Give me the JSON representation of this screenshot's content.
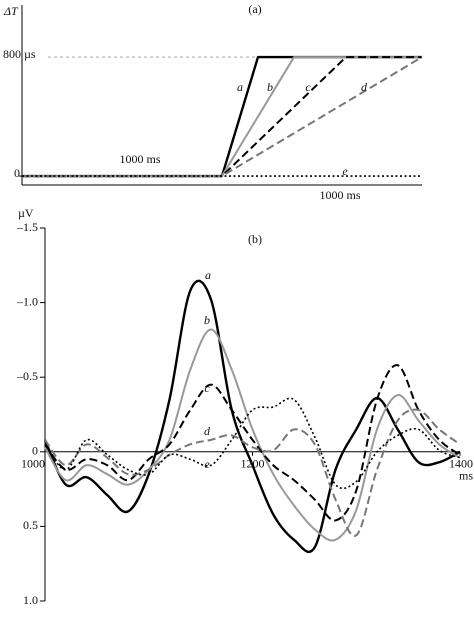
{
  "chart_data": [
    {
      "type": "line",
      "title": "(a)",
      "y_label": "ΔT",
      "annotations": [
        "1000  ms",
        "1000 ms"
      ],
      "xlim": [
        0,
        2000
      ],
      "ylim": [
        -60,
        1150
      ],
      "yticks": [
        0,
        {
          "value": 800,
          "label": "800 µs"
        }
      ],
      "grid": true,
      "series": [
        {
          "name": "a",
          "color": "#000000",
          "style": "solid",
          "x": [
            0,
            1000,
            1180,
            2000
          ],
          "values": [
            0,
            0,
            800,
            800
          ]
        },
        {
          "name": "b",
          "color": "#999999",
          "style": "solid",
          "x": [
            0,
            1000,
            1360,
            2000
          ],
          "values": [
            0,
            0,
            800,
            800
          ]
        },
        {
          "name": "c",
          "color": "#000000",
          "style": "dashed",
          "x": [
            0,
            1000,
            1620,
            2000
          ],
          "values": [
            0,
            0,
            800,
            800
          ]
        },
        {
          "name": "d",
          "color": "#777777",
          "style": "dashed",
          "x": [
            0,
            1000,
            2000
          ],
          "values": [
            0,
            0,
            800
          ]
        },
        {
          "name": "e",
          "color": "#000000",
          "style": "dotted",
          "x": [
            0,
            2000
          ],
          "values": [
            0,
            0
          ]
        }
      ]
    },
    {
      "type": "line",
      "title": "(b)",
      "y_label": "µV",
      "x_label": "ms",
      "xlim": [
        1000,
        1400
      ],
      "ylim": [
        -1.5,
        1.0
      ],
      "y_inverted": true,
      "xticks": [
        1000,
        1200,
        1400
      ],
      "yticks": [
        {
          "value": -1.5,
          "label": "–1.5"
        },
        {
          "value": -1.0,
          "label": "–1.0"
        },
        {
          "value": -0.5,
          "label": "–0.5"
        },
        0,
        0.5,
        {
          "value": 1.0,
          "label": "1.0"
        }
      ],
      "x": [
        1000,
        1020,
        1040,
        1060,
        1080,
        1100,
        1120,
        1140,
        1160,
        1180,
        1200,
        1220,
        1240,
        1260,
        1280,
        1300,
        1320,
        1340,
        1360,
        1380,
        1400
      ],
      "series": [
        {
          "name": "a",
          "color": "#000000",
          "style": "solid",
          "values": [
            -0.08,
            0.22,
            0.17,
            0.29,
            0.4,
            0.15,
            -0.35,
            -1.08,
            -1.02,
            -0.28,
            0.09,
            0.42,
            0.59,
            0.64,
            0.12,
            -0.15,
            -0.36,
            -0.15,
            0.07,
            0.07,
            0
          ]
        },
        {
          "name": "b",
          "color": "#999999",
          "style": "solid",
          "values": [
            -0.03,
            0.19,
            0.09,
            0.15,
            0.22,
            0.12,
            -0.08,
            -0.55,
            -0.82,
            -0.55,
            -0.15,
            0.15,
            0.36,
            0.52,
            0.59,
            0.39,
            -0.15,
            -0.38,
            -0.21,
            -0.05,
            0.04
          ]
        },
        {
          "name": "c",
          "color": "#000000",
          "style": "dashed",
          "values": [
            -0.05,
            0.12,
            0.05,
            0.09,
            0.19,
            0.05,
            -0.05,
            -0.28,
            -0.45,
            -0.28,
            -0.08,
            0.09,
            0.19,
            0.32,
            0.46,
            0.26,
            -0.35,
            -0.58,
            -0.28,
            -0.08,
            0.02
          ]
        },
        {
          "name": "d",
          "color": "#777777",
          "style": "dashed",
          "values": [
            -0.08,
            0.09,
            -0.05,
            0.04,
            0.15,
            0.12,
            0.02,
            -0.05,
            -0.08,
            -0.11,
            -0.03,
            -0.01,
            -0.15,
            -0.05,
            0.32,
            0.56,
            0.12,
            -0.21,
            -0.28,
            -0.15,
            -0.05
          ]
        },
        {
          "name": "e",
          "color": "#000000",
          "style": "dotted",
          "values": [
            -0.05,
            0.12,
            -0.08,
            0.02,
            0.12,
            0.15,
            0.02,
            0.05,
            0.09,
            -0.08,
            -0.28,
            -0.3,
            -0.35,
            -0.1,
            0.22,
            0.2,
            0,
            -0.11,
            -0.15,
            -0.01,
            0.04
          ]
        }
      ]
    }
  ]
}
